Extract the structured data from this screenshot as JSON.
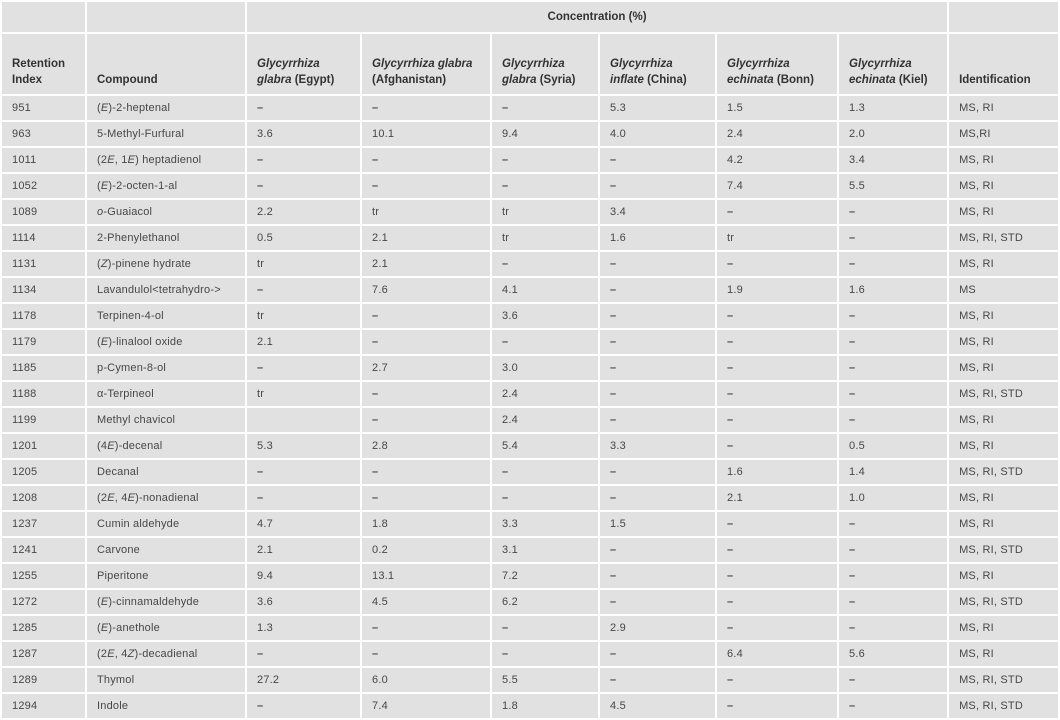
{
  "table": {
    "group_header": {
      "concentration_label": "Concentration (%)"
    },
    "columns": [
      {
        "id": "retention-index",
        "label_html": "Retention Index"
      },
      {
        "id": "compound",
        "label_html": "Compound"
      },
      {
        "id": "glycyrrhiza-glabra-egypt",
        "label_html": "<i>Glycyrrhiza</i><br><i>glabra</i> (Egypt)"
      },
      {
        "id": "glycyrrhiza-glabra-afghanistan",
        "label_html": "<i>Glycyrrhiza glabra</i><br>(Afghanistan)"
      },
      {
        "id": "glycyrrhiza-glabra-syria",
        "label_html": "<i>Glycyrrhiza</i><br><i>glabra</i> (Syria)"
      },
      {
        "id": "glycyrrhiza-inflate-china",
        "label_html": "<i>Glycyrrhiza</i><br><i>inflate</i> (China)"
      },
      {
        "id": "glycyrrhiza-echinata-bonn",
        "label_html": "<i>Glycyrrhiza</i><br><i>echinata</i> (Bonn)"
      },
      {
        "id": "glycyrrhiza-echinata-kiel",
        "label_html": "<i>Glycyrrhiza</i><br><i>echinata</i> (Kiel)"
      },
      {
        "id": "identification",
        "label_html": "Identification"
      }
    ],
    "rows": [
      {
        "retention_index": "951",
        "compound_html": "(<i>E</i>)-2-heptenal",
        "values": [
          "–",
          "–",
          "–",
          "5.3",
          "1.5",
          "1.3"
        ],
        "identification": "MS, RI"
      },
      {
        "retention_index": "963",
        "compound_html": "5-Methyl-Furfural",
        "values": [
          "3.6",
          "10.1",
          "9.4",
          "4.0",
          "2.4",
          "2.0"
        ],
        "identification": "MS,RI"
      },
      {
        "retention_index": "1011",
        "compound_html": "(2<i>E</i>, 1<i>E</i>) heptadienol",
        "values": [
          "–",
          "–",
          "–",
          "–",
          "4.2",
          "3.4"
        ],
        "identification": "MS, RI"
      },
      {
        "retention_index": "1052",
        "compound_html": "(<i>E</i>)-2-octen-1-al",
        "values": [
          "–",
          "–",
          "–",
          "–",
          "7.4",
          "5.5"
        ],
        "identification": "MS, RI"
      },
      {
        "retention_index": "1089",
        "compound_html": "<i>o</i>-Guaiacol",
        "values": [
          "2.2",
          "tr",
          "tr",
          "3.4",
          "–",
          "–"
        ],
        "identification": "MS, RI"
      },
      {
        "retention_index": "1114",
        "compound_html": "2-Phenylethanol",
        "values": [
          "0.5",
          "2.1",
          "tr",
          "1.6",
          "tr",
          "–"
        ],
        "identification": "MS, RI, STD"
      },
      {
        "retention_index": "1131",
        "compound_html": "(<i>Z</i>)-pinene hydrate",
        "values": [
          "tr",
          "2.1",
          "–",
          "–",
          "–",
          "–"
        ],
        "identification": "MS, RI"
      },
      {
        "retention_index": "1134",
        "compound_html": "Lavandulol&lt;tetrahydro-&gt;",
        "values": [
          "–",
          "7.6",
          "4.1",
          "–",
          "1.9",
          "1.6"
        ],
        "identification": "MS"
      },
      {
        "retention_index": "1178",
        "compound_html": "Terpinen-4-ol",
        "values": [
          "tr",
          "–",
          "3.6",
          "–",
          "–",
          "–"
        ],
        "identification": "MS, RI"
      },
      {
        "retention_index": "1179",
        "compound_html": "(<i>E</i>)-linalool oxide",
        "values": [
          "2.1",
          "–",
          "–",
          "–",
          "–",
          "–"
        ],
        "identification": "MS, RI"
      },
      {
        "retention_index": "1185",
        "compound_html": "p-Cymen-8-ol",
        "values": [
          "–",
          "2.7",
          "3.0",
          "–",
          "–",
          "–"
        ],
        "identification": "MS, RI"
      },
      {
        "retention_index": "1188",
        "compound_html": "α-Terpineol",
        "values": [
          "tr",
          "–",
          "2.4",
          "–",
          "–",
          "–"
        ],
        "identification": "MS, RI, STD"
      },
      {
        "retention_index": "1199",
        "compound_html": "Methyl chavicol",
        "values": [
          "",
          "–",
          "2.4",
          "–",
          "–",
          "–"
        ],
        "identification": "MS, RI"
      },
      {
        "retention_index": "1201",
        "compound_html": "(4<i>E</i>)-decenal",
        "values": [
          "5.3",
          "2.8",
          "5.4",
          "3.3",
          "–",
          "0.5"
        ],
        "identification": "MS, RI"
      },
      {
        "retention_index": "1205",
        "compound_html": "Decanal",
        "values": [
          "–",
          "–",
          "–",
          "–",
          "1.6",
          "1.4"
        ],
        "identification": "MS, RI, STD"
      },
      {
        "retention_index": "1208",
        "compound_html": "(2<i>E</i>, 4<i>E</i>)-nonadienal",
        "values": [
          "–",
          "–",
          "–",
          "–",
          "2.1",
          "1.0"
        ],
        "identification": "MS, RI"
      },
      {
        "retention_index": "1237",
        "compound_html": "Cumin aldehyde",
        "values": [
          "4.7",
          "1.8",
          "3.3",
          "1.5",
          "–",
          "–"
        ],
        "identification": "MS, RI"
      },
      {
        "retention_index": "1241",
        "compound_html": "Carvone",
        "values": [
          "2.1",
          "0.2",
          "3.1",
          "–",
          "–",
          "–"
        ],
        "identification": "MS, RI, STD"
      },
      {
        "retention_index": "1255",
        "compound_html": "Piperitone",
        "values": [
          "9.4",
          "13.1",
          "7.2",
          "–",
          "–",
          "–"
        ],
        "identification": "MS, RI"
      },
      {
        "retention_index": "1272",
        "compound_html": "(<i>E</i>)-cinnamaldehyde",
        "values": [
          "3.6",
          "4.5",
          "6.2",
          "–",
          "–",
          "–"
        ],
        "identification": "MS, RI, STD"
      },
      {
        "retention_index": "1285",
        "compound_html": "(<i>E</i>)-anethole",
        "values": [
          "1.3",
          "–",
          "–",
          "2.9",
          "–",
          "–"
        ],
        "identification": "MS, RI"
      },
      {
        "retention_index": "1287",
        "compound_html": "(2<i>E</i>, 4<i>Z</i>)-decadienal",
        "values": [
          "–",
          "–",
          "–",
          "–",
          "6.4",
          "5.6"
        ],
        "identification": "MS, RI"
      },
      {
        "retention_index": "1289",
        "compound_html": "Thymol",
        "values": [
          "27.2",
          "6.0",
          "5.5",
          "–",
          "–",
          "–"
        ],
        "identification": "MS, RI, STD"
      },
      {
        "retention_index": "1294",
        "compound_html": "Indole",
        "values": [
          "–",
          "7.4",
          "1.8",
          "4.5",
          "–",
          "–"
        ],
        "identification": "MS, RI, STD"
      }
    ]
  }
}
